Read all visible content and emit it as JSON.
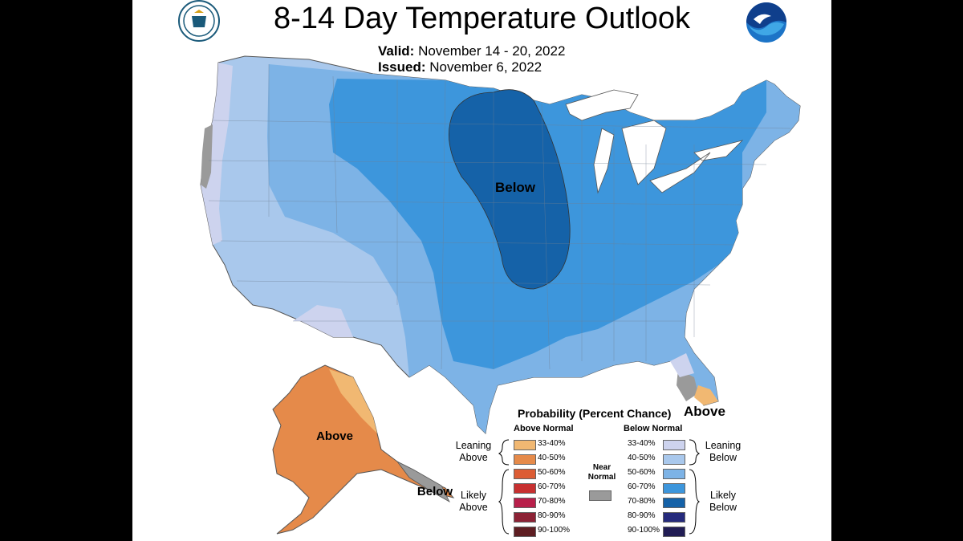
{
  "title": "8-14 Day Temperature Outlook",
  "valid_label": "Valid:",
  "valid_value": "November 14 - 20, 2022",
  "issued_label": "Issued:",
  "issued_value": "November 6, 2022",
  "logos": {
    "left": "doc-seal-icon",
    "right": "noaa-logo-icon"
  },
  "map_labels": {
    "below_main": "Below",
    "above_alaska": "Above",
    "below_alaska": "Below",
    "above_florida": "Above"
  },
  "legend": {
    "title": "Probability (Percent Chance)",
    "above_header": "Above Normal",
    "below_header": "Below Normal",
    "near_normal": "Near Normal",
    "leaning_above": "Leaning Above",
    "likely_above": "Likely Above",
    "leaning_below": "Leaning Below",
    "likely_below": "Likely Below",
    "above_ranges": [
      "33-40%",
      "40-50%",
      "50-60%",
      "60-70%",
      "70-80%",
      "80-90%",
      "90-100%"
    ],
    "below_ranges": [
      "33-40%",
      "40-50%",
      "50-60%",
      "60-70%",
      "70-80%",
      "80-90%",
      "90-100%"
    ],
    "above_colors": [
      "#f1b872",
      "#e58a4a",
      "#dc5c34",
      "#c73030",
      "#b81f4a",
      "#8c2235",
      "#5e1e22"
    ],
    "below_colors": [
      "#cdd3ee",
      "#a9c8ec",
      "#7db3e6",
      "#3d96dc",
      "#1562a8",
      "#252a7c",
      "#211d54"
    ],
    "near_color": "#9a9a9a"
  }
}
